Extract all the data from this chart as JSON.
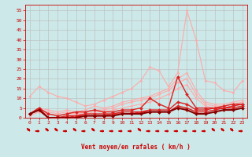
{
  "x": [
    0,
    1,
    2,
    3,
    4,
    5,
    6,
    7,
    8,
    9,
    10,
    11,
    12,
    13,
    14,
    15,
    16,
    17,
    18,
    19,
    20,
    21,
    22,
    23
  ],
  "series": [
    {
      "color": "#ffaaaa",
      "lw": 0.8,
      "marker": "D",
      "ms": 1.5,
      "values": [
        11,
        16,
        13,
        11,
        10,
        8,
        6,
        7,
        9,
        11,
        13,
        15,
        19,
        26,
        24,
        16,
        23,
        55,
        40,
        19,
        18,
        14,
        13,
        19
      ]
    },
    {
      "color": "#ffaaaa",
      "lw": 0.8,
      "marker": "D",
      "ms": 1.5,
      "values": [
        2,
        5,
        4,
        3,
        4,
        3,
        4,
        6,
        5,
        6,
        8,
        9,
        10,
        11,
        13,
        15,
        20,
        23,
        14,
        8,
        7,
        7,
        8,
        9
      ]
    },
    {
      "color": "#ffaaaa",
      "lw": 0.8,
      "marker": "D",
      "ms": 1.5,
      "values": [
        2,
        4,
        3,
        2,
        3,
        2,
        3,
        4,
        4,
        5,
        7,
        8,
        9,
        10,
        12,
        14,
        18,
        20,
        12,
        7,
        6,
        6,
        7,
        8
      ]
    },
    {
      "color": "#ffaaaa",
      "lw": 0.8,
      "marker": "D",
      "ms": 1.5,
      "values": [
        1,
        3,
        2,
        1,
        2,
        2,
        2,
        3,
        3,
        4,
        5,
        6,
        7,
        8,
        10,
        12,
        15,
        17,
        10,
        6,
        5,
        5,
        6,
        7
      ]
    },
    {
      "color": "#dd2222",
      "lw": 1.0,
      "marker": "D",
      "ms": 2.0,
      "values": [
        2,
        5,
        2,
        1,
        2,
        3,
        3,
        4,
        3,
        3,
        4,
        4,
        5,
        10,
        7,
        5,
        21,
        12,
        5,
        5,
        5,
        6,
        7,
        7
      ]
    },
    {
      "color": "#dd2222",
      "lw": 1.0,
      "marker": "D",
      "ms": 2.0,
      "values": [
        2,
        5,
        0,
        0,
        1,
        1,
        2,
        2,
        2,
        2,
        3,
        3,
        3,
        4,
        4,
        4,
        8,
        7,
        4,
        4,
        5,
        5,
        6,
        7
      ]
    },
    {
      "color": "#dd2222",
      "lw": 1.0,
      "marker": "D",
      "ms": 2.0,
      "values": [
        2,
        4,
        0,
        0,
        0,
        1,
        1,
        1,
        1,
        2,
        2,
        2,
        3,
        3,
        3,
        3,
        6,
        5,
        3,
        3,
        4,
        5,
        5,
        6
      ]
    },
    {
      "color": "#880000",
      "lw": 1.5,
      "marker": "D",
      "ms": 2.0,
      "values": [
        2,
        4,
        0,
        0,
        0,
        0,
        1,
        1,
        1,
        1,
        2,
        2,
        2,
        3,
        3,
        3,
        5,
        4,
        2,
        2,
        3,
        4,
        4,
        5
      ]
    }
  ],
  "xlabel": "Vent moyen/en rafales ( km/h )",
  "ylim": [
    0,
    58
  ],
  "yticks": [
    0,
    5,
    10,
    15,
    20,
    25,
    30,
    35,
    40,
    45,
    50,
    55
  ],
  "ytick_labels": [
    "0",
    "5",
    "10",
    "15",
    "20",
    "25",
    "30",
    "35",
    "40",
    "45",
    "50",
    "55"
  ],
  "xlim": [
    -0.5,
    23.5
  ],
  "xticks": [
    0,
    1,
    2,
    3,
    4,
    5,
    6,
    7,
    8,
    9,
    10,
    11,
    12,
    13,
    14,
    15,
    16,
    17,
    18,
    19,
    20,
    21,
    22,
    23
  ],
  "bg_color": "#cce8e8",
  "grid_color": "#bbbbbb",
  "arrow_color": "#cc0000",
  "xlabel_color": "#cc0000",
  "tick_color": "#cc0000",
  "axis_color": "#cc0000",
  "wind_directions": [
    225,
    270,
    225,
    225,
    270,
    225,
    270,
    225,
    270,
    270,
    270,
    270,
    225,
    270,
    270,
    270,
    270,
    270,
    270,
    270,
    225,
    225,
    225,
    270
  ]
}
